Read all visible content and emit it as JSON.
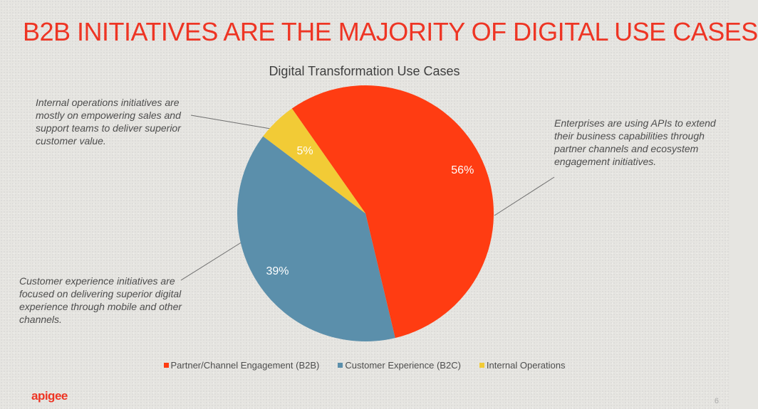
{
  "slide": {
    "title": "B2B INITIATIVES ARE THE MAJORITY OF DIGITAL USE CASES",
    "page_number": "6",
    "logo_text": "apigee"
  },
  "annotations": {
    "internal_operations": "Internal operations initiatives are mostly on empowering sales and support teams to deliver superior customer value.",
    "enterprises": "Enterprises are using APIs to extend their business capabilities through partner channels and ecosystem engagement initiatives.",
    "customer_experience": "Customer experience initiatives are focused on delivering superior digital experience through mobile and other channels."
  },
  "chart_data": {
    "type": "pie",
    "title": "Digital Transformation Use Cases",
    "categories": [
      "Partner/Channel Engagement (B2B)",
      "Customer Experience (B2C)",
      "Internal Operations"
    ],
    "values": [
      56,
      39,
      5
    ],
    "labels": [
      "56%",
      "39%",
      "5%"
    ],
    "colors": [
      "#ff3c12",
      "#5b8fab",
      "#f2cb36"
    ],
    "legend_position": "bottom"
  },
  "colors": {
    "title": "#ee3524",
    "background": "#e6e5e1"
  }
}
